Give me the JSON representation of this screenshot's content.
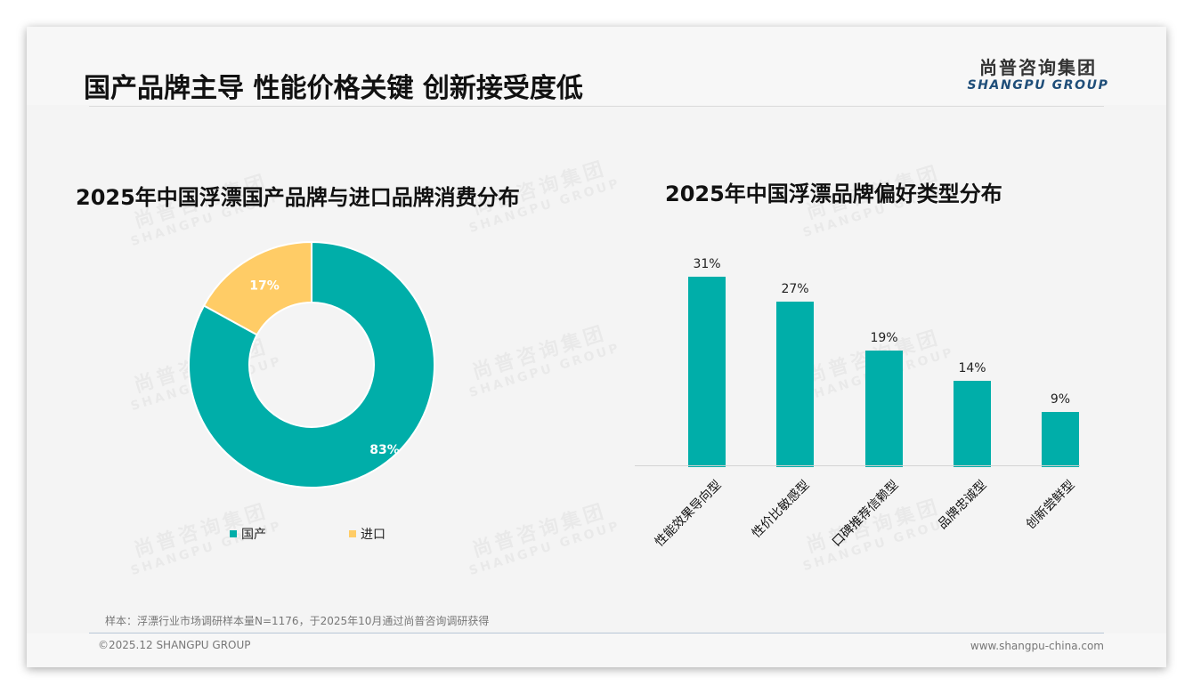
{
  "header": {
    "title": "国产品牌主导 性能价格关键 创新接受度低",
    "logo_cn": "尚普咨询集团",
    "logo_en": "SHANGPU GROUP"
  },
  "watermark": {
    "cn": "尚普咨询集团",
    "en": "SHANGPU GROUP"
  },
  "colors": {
    "primary": "#00aea9",
    "secondary": "#ffcc66",
    "background": "#f4f4f4"
  },
  "left_chart": {
    "title": "2025年中国浮漂国产品牌与进口品牌消费分布",
    "slices": [
      {
        "label": "国产",
        "value": 83,
        "display": "83%",
        "color": "#00aea9"
      },
      {
        "label": "进口",
        "value": 17,
        "display": "17%",
        "color": "#ffcc66"
      }
    ]
  },
  "right_chart": {
    "title": "2025年中国浮漂品牌偏好类型分布",
    "bars": [
      {
        "label": "性能效果导向型",
        "value": 31,
        "display": "31%"
      },
      {
        "label": "性价比敏感型",
        "value": 27,
        "display": "27%"
      },
      {
        "label": "口碑推荐信赖型",
        "value": 19,
        "display": "19%"
      },
      {
        "label": "品牌忠诚型",
        "value": 14,
        "display": "14%"
      },
      {
        "label": "创新尝鲜型",
        "value": 9,
        "display": "9%"
      }
    ]
  },
  "chart_data": [
    {
      "type": "pie",
      "title": "2025年中国浮漂国产品牌与进口品牌消费分布",
      "categories": [
        "国产",
        "进口"
      ],
      "values": [
        83,
        17
      ],
      "unit": "%",
      "donut": true,
      "legend_position": "bottom",
      "colors": [
        "#00aea9",
        "#ffcc66"
      ]
    },
    {
      "type": "bar",
      "title": "2025年中国浮漂品牌偏好类型分布",
      "categories": [
        "性能效果导向型",
        "性价比敏感型",
        "口碑推荐信赖型",
        "品牌忠诚型",
        "创新尝鲜型"
      ],
      "values": [
        31,
        27,
        19,
        14,
        9
      ],
      "unit": "%",
      "xlabel": "",
      "ylabel": "",
      "ylim": [
        0,
        35
      ],
      "grid": false,
      "data_labels": true,
      "colors": [
        "#00aea9"
      ]
    }
  ],
  "footer": {
    "note": "样本：浮漂行业市场调研样本量N=1176，于2025年10月通过尚普咨询调研获得",
    "copyright": "©2025.12 SHANGPU GROUP",
    "website": "www.shangpu-china.com"
  }
}
